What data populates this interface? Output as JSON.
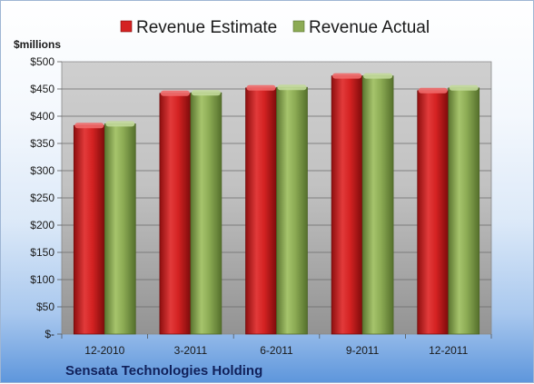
{
  "chart_data": {
    "type": "bar",
    "categories": [
      "12-2010",
      "3-2011",
      "6-2011",
      "9-2011",
      "12-2011"
    ],
    "series": [
      {
        "name": "Revenue Estimate",
        "color": "#d42222",
        "values": [
          383,
          442,
          452,
          474,
          447
        ]
      },
      {
        "name": "Revenue Actual",
        "color": "#8cab54",
        "values": [
          386,
          443,
          453,
          474,
          452
        ]
      }
    ],
    "ylabel": "$millions",
    "ylim": [
      0,
      500
    ],
    "yticks": [
      0,
      50,
      100,
      150,
      200,
      250,
      300,
      350,
      400,
      450,
      500
    ],
    "ytick_labels": [
      "$-",
      "$50",
      "$100",
      "$150",
      "$200",
      "$250",
      "$300",
      "$350",
      "$400",
      "$450",
      "$500"
    ],
    "grid": true,
    "legend": "top-center"
  },
  "footer": {
    "company": "Sensata Technologies Holding"
  }
}
